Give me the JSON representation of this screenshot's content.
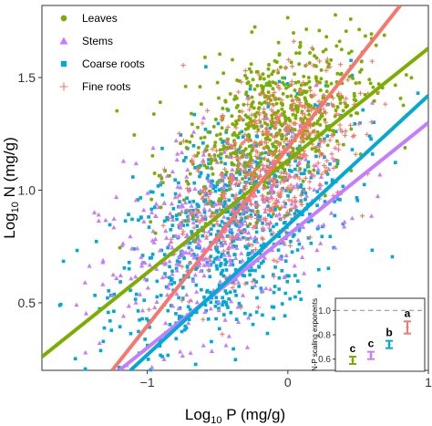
{
  "chart_data": {
    "type": "scatter",
    "xlabel_main": "Log",
    "xlabel_sub": "10",
    "xlabel_rest": " P (mg/g)",
    "ylabel_main": "Log",
    "ylabel_sub": "10",
    "ylabel_rest": " N (mg/g)",
    "xlim": [
      -1.75,
      1.0
    ],
    "ylim": [
      0.2,
      1.82
    ],
    "x_ticks": [
      -1,
      0,
      1
    ],
    "x_tick_labels": [
      "−1",
      "0",
      "1"
    ],
    "y_ticks": [
      0.5,
      1.0,
      1.5
    ],
    "y_tick_labels": [
      "0.5",
      "1.0",
      "1.5"
    ],
    "legend_position": "top-left",
    "series": [
      {
        "name": "Leaves",
        "color": "#7cae00",
        "marker": "circle",
        "cloud": {
          "cx": -0.1,
          "cy": 1.3,
          "sx": 0.33,
          "sy": 0.17,
          "n": 650
        },
        "fit_line": {
          "x0": -1.75,
          "y0": 0.26,
          "x1": 1.0,
          "y1": 1.63
        }
      },
      {
        "name": "Stems",
        "color": "#c77cff",
        "marker": "triangle",
        "cloud": {
          "cx": -0.5,
          "cy": 0.82,
          "sx": 0.42,
          "sy": 0.22,
          "n": 420
        },
        "fit_line": {
          "x0": -1.2,
          "y0": 0.2,
          "x1": 1.0,
          "y1": 1.3
        }
      },
      {
        "name": "Coarse roots",
        "color": "#00a9d6",
        "marker": "square",
        "cloud": {
          "cx": -0.4,
          "cy": 0.82,
          "sx": 0.42,
          "sy": 0.24,
          "n": 800
        },
        "fit_line": {
          "x0": -1.12,
          "y0": 0.2,
          "x1": 1.0,
          "y1": 1.42
        }
      },
      {
        "name": "Fine roots",
        "color": "#f8766d",
        "marker": "plus",
        "cloud": {
          "cx": -0.15,
          "cy": 1.1,
          "sx": 0.3,
          "sy": 0.2,
          "n": 550
        },
        "fit_line": {
          "x0": -1.25,
          "y0": 0.2,
          "x1": 0.8,
          "y1": 1.82
        }
      }
    ],
    "inset": {
      "type": "errorbar",
      "ylabel": "N-P scaling exponents",
      "ylim": [
        0.5,
        1.1
      ],
      "ticks": [
        1.0,
        0.8,
        0.6
      ],
      "tick_labels": [
        "1.0",
        "0.8",
        "0.6"
      ],
      "reference_line": 1.0,
      "points": [
        {
          "series": "Leaves",
          "color": "#7cae00",
          "value": 0.59,
          "lo": 0.56,
          "hi": 0.62,
          "letter": "c"
        },
        {
          "series": "Stems",
          "color": "#c77cff",
          "value": 0.63,
          "lo": 0.6,
          "hi": 0.66,
          "letter": "c"
        },
        {
          "series": "Coarse roots",
          "color": "#00a9d6",
          "value": 0.72,
          "lo": 0.69,
          "hi": 0.75,
          "letter": "b"
        },
        {
          "series": "Fine roots",
          "color": "#f8766d",
          "value": 0.86,
          "lo": 0.81,
          "hi": 0.91,
          "letter": "a"
        }
      ]
    }
  }
}
